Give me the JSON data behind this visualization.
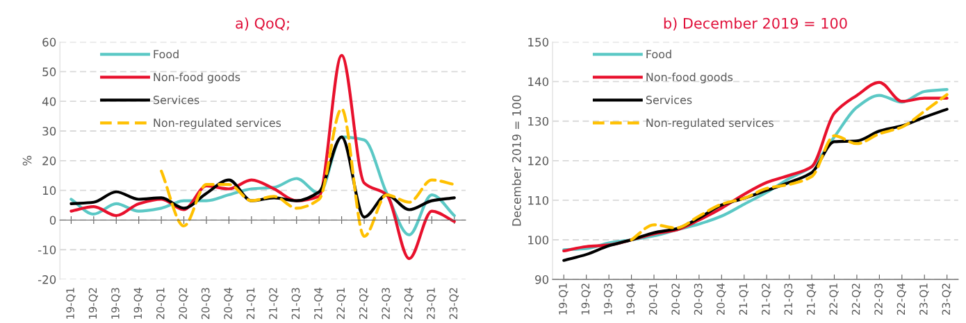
{
  "chart_data": [
    {
      "type": "line",
      "title": "a) QoQ;",
      "ylabel": "%",
      "categories": [
        "19-Q1",
        "19-Q2",
        "19-Q3",
        "19-Q4",
        "20-Q1",
        "20-Q2",
        "20-Q3",
        "20-Q4",
        "21-Q1",
        "21-Q2",
        "21-Q3",
        "21-Q4",
        "22-Q1",
        "22-Q2",
        "22-Q3",
        "22-Q4",
        "23-Q1",
        "23-Q2"
      ],
      "ylim": [
        -20,
        60
      ],
      "yticks": [
        -20,
        -10,
        0,
        10,
        20,
        30,
        40,
        50,
        60
      ],
      "grid": "y",
      "legend": "top left",
      "marker": "none",
      "series": [
        {
          "name": "Food",
          "color": "#5bc8c5",
          "line_style": "solid",
          "values": [
            7,
            2,
            5.5,
            3,
            4,
            6.5,
            6.5,
            8.5,
            10.5,
            11,
            14,
            9,
            28,
            27,
            9,
            -5,
            8.5,
            1.5
          ]
        },
        {
          "name": "Non-food goods",
          "color": "#e8112d",
          "line_style": "solid",
          "values": [
            3,
            4.5,
            1.5,
            5.5,
            7,
            3.5,
            11.5,
            10.5,
            13.5,
            10.5,
            6.5,
            8,
            55.5,
            12.5,
            8.5,
            -13,
            3,
            -0.5
          ]
        },
        {
          "name": "Services",
          "color": "#000000",
          "line_style": "solid",
          "values": [
            5.5,
            6,
            9.5,
            7,
            7.5,
            4,
            9,
            13.5,
            6.5,
            7.5,
            6.5,
            9.5,
            28,
            1,
            8.5,
            3.5,
            6.5,
            7.5
          ]
        },
        {
          "name": "Non-regulated services",
          "color": "#ffc000",
          "line_style": "dashed",
          "values": [
            null,
            null,
            null,
            null,
            16.5,
            -2,
            12,
            12,
            6.5,
            8,
            4,
            7,
            37.5,
            -5.5,
            8.5,
            6,
            13.5,
            12
          ]
        }
      ]
    },
    {
      "type": "line",
      "title": "b) December 2019 = 100",
      "ylabel": "December 2019 = 100",
      "categories": [
        "19-Q1",
        "19-Q2",
        "19-Q3",
        "19-Q4",
        "20-Q1",
        "20-Q2",
        "20-Q3",
        "20-Q4",
        "21-Q1",
        "21-Q2",
        "21-Q3",
        "21-Q4",
        "22-Q1",
        "22-Q2",
        "22-Q3",
        "22-Q4",
        "23-Q1",
        "23-Q2"
      ],
      "ylim": [
        90,
        150
      ],
      "yticks": [
        90,
        100,
        110,
        120,
        130,
        140,
        150
      ],
      "grid": "y",
      "legend": "top left",
      "marker": "none",
      "series": [
        {
          "name": "Food",
          "color": "#5bc8c5",
          "line_style": "solid",
          "values": [
            97.5,
            97.8,
            99.2,
            100,
            101,
            102.5,
            104,
            106,
            109,
            112,
            115.5,
            118.5,
            126,
            133.5,
            136.5,
            134.8,
            137.5,
            138
          ]
        },
        {
          "name": "Non-food goods",
          "color": "#e8112d",
          "line_style": "solid",
          "values": [
            97.2,
            98.3,
            98.7,
            100,
            101.5,
            102.5,
            105,
            108,
            111.5,
            114.5,
            116.3,
            118.5,
            132,
            136.5,
            139.8,
            135,
            135.8,
            135.8
          ]
        },
        {
          "name": "Services",
          "color": "#000000",
          "line_style": "solid",
          "values": [
            94.8,
            96.3,
            98.5,
            100,
            101.8,
            102.8,
            105.5,
            108.8,
            110.5,
            112.5,
            114.5,
            117,
            124.8,
            125,
            127.5,
            128.8,
            131,
            133
          ]
        },
        {
          "name": "Non-regulated services",
          "color": "#ffc000",
          "line_style": "dashed",
          "values": [
            null,
            null,
            null,
            100,
            103.8,
            103,
            106,
            109,
            110.5,
            113,
            114,
            116,
            126.3,
            124.3,
            126.8,
            128.5,
            132.5,
            136.7
          ]
        }
      ]
    }
  ]
}
